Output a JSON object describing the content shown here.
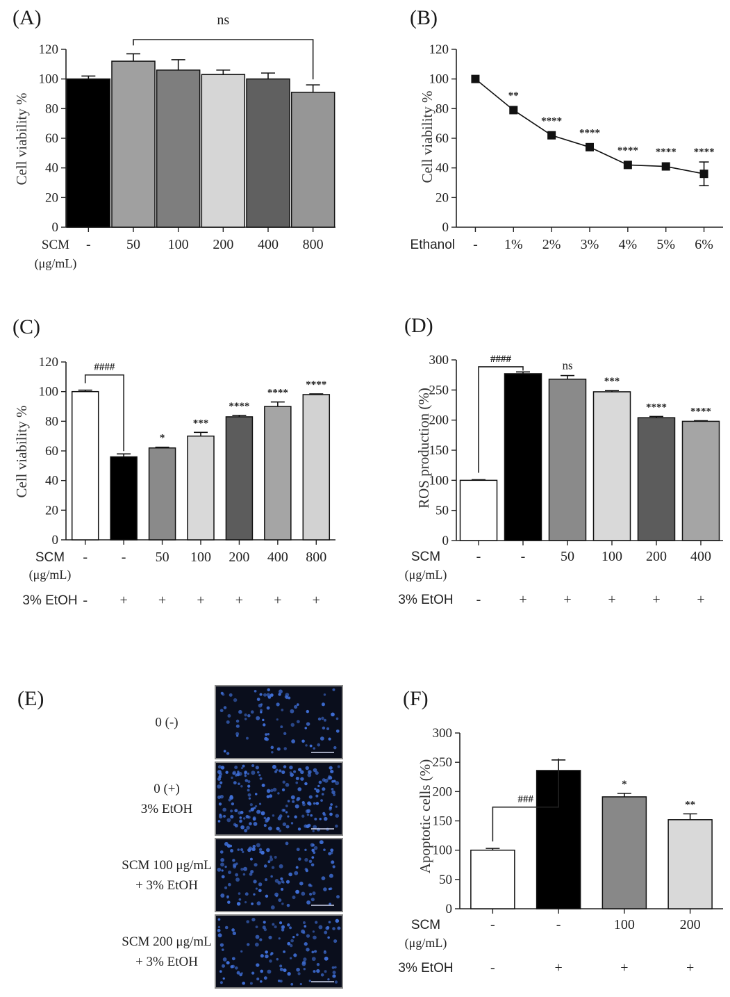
{
  "chart_data": [
    {
      "panel": "(A)",
      "type": "bar",
      "ylabel": "Cell viability %",
      "ylim": [
        0,
        120
      ],
      "yticks": [
        0,
        20,
        40,
        60,
        80,
        100,
        120
      ],
      "rows": [
        {
          "label": "SCM",
          "sublabel": "(μg/mL)",
          "values": [
            "-",
            "50",
            "100",
            "200",
            "400",
            "800"
          ]
        }
      ],
      "values": [
        100,
        112,
        106,
        103,
        100,
        91
      ],
      "errors": [
        2,
        5,
        7,
        3,
        4,
        5
      ],
      "colors": [
        "#000000",
        "#a0a0a0",
        "#7e7e7e",
        "#d6d6d6",
        "#606060",
        "#969696"
      ],
      "annotations": [
        {
          "text": "ns",
          "type": "bracket",
          "from": 1,
          "to": 5
        }
      ]
    },
    {
      "panel": "(B)",
      "type": "line",
      "ylabel": "Cell viability %",
      "ylim": [
        0,
        120
      ],
      "yticks": [
        0,
        20,
        40,
        60,
        80,
        100,
        120
      ],
      "rows": [
        {
          "label": "Ethanol",
          "values": [
            "-",
            "1%",
            "2%",
            "3%",
            "4%",
            "5%",
            "6%"
          ]
        }
      ],
      "values": [
        100,
        79,
        62,
        54,
        42,
        41,
        36
      ],
      "errors": [
        0,
        1,
        1,
        1,
        1,
        1,
        8
      ],
      "stars": [
        "",
        "**",
        "****",
        "****",
        "****",
        "****",
        "****"
      ]
    },
    {
      "panel": "(C)",
      "type": "bar",
      "ylabel": "Cell viability %",
      "ylim": [
        0,
        120
      ],
      "yticks": [
        0,
        20,
        40,
        60,
        80,
        100,
        120
      ],
      "rows": [
        {
          "label": "SCM",
          "sublabel": "(μg/mL)",
          "values": [
            "-",
            "-",
            "50",
            "100",
            "200",
            "400",
            "800"
          ]
        },
        {
          "label": "3% EtOH",
          "values": [
            "-",
            "+",
            "+",
            "+",
            "+",
            "+",
            "+"
          ]
        }
      ],
      "values": [
        100,
        56,
        62,
        70,
        83,
        90,
        98
      ],
      "errors": [
        1,
        2,
        0.5,
        2.5,
        1,
        3,
        0.5
      ],
      "colors": [
        "#ffffff",
        "#000000",
        "#8a8a8a",
        "#d9d9d9",
        "#5c5c5c",
        "#a5a5a5",
        "#d2d2d2"
      ],
      "stars": [
        "",
        "",
        "*",
        "***",
        "****",
        "****",
        "****"
      ],
      "annotations": [
        {
          "text": "####",
          "type": "bracket",
          "from": 0,
          "to": 1
        }
      ]
    },
    {
      "panel": "(D)",
      "type": "bar",
      "ylabel": "ROS production (%)",
      "ylim": [
        0,
        300
      ],
      "yticks": [
        0,
        50,
        100,
        150,
        200,
        250,
        300
      ],
      "rows": [
        {
          "label": "SCM",
          "sublabel": "(μg/mL)",
          "values": [
            "-",
            "-",
            "50",
            "100",
            "200",
            "400"
          ]
        },
        {
          "label": "3% EtOH",
          "values": [
            "-",
            "+",
            "+",
            "+",
            "+",
            "+"
          ]
        }
      ],
      "values": [
        100,
        277,
        268,
        247,
        204,
        198
      ],
      "errors": [
        1,
        3,
        6,
        2,
        2,
        1
      ],
      "colors": [
        "#ffffff",
        "#000000",
        "#8a8a8a",
        "#d9d9d9",
        "#5c5c5c",
        "#a5a5a5"
      ],
      "stars": [
        "",
        "",
        "ns",
        "***",
        "****",
        "****"
      ],
      "annotations": [
        {
          "text": "####",
          "type": "bracket",
          "from": 0,
          "to": 1
        }
      ]
    },
    {
      "panel": "(F)",
      "type": "bar",
      "ylabel": "Apoptotic cells (%)",
      "ylim": [
        0,
        300
      ],
      "yticks": [
        0,
        50,
        100,
        150,
        200,
        250,
        300
      ],
      "rows": [
        {
          "label": "SCM",
          "sublabel": "(μg/mL)",
          "values": [
            "-",
            "-",
            "100",
            "200"
          ]
        },
        {
          "label": "3% EtOH",
          "values": [
            "-",
            "+",
            "+",
            "+"
          ]
        }
      ],
      "values": [
        100,
        236,
        191,
        152
      ],
      "errors": [
        3,
        18,
        6,
        10
      ],
      "colors": [
        "#ffffff",
        "#000000",
        "#888888",
        "#d9d9d9"
      ],
      "stars": [
        "",
        "",
        "*",
        "**"
      ],
      "annotations": [
        {
          "text": "###",
          "type": "bracket",
          "from": 0,
          "to": 1
        }
      ]
    }
  ],
  "panel_e": {
    "label": "(E)",
    "images": [
      {
        "label_lines": [
          "0 (-)"
        ],
        "density": "sparse"
      },
      {
        "label_lines": [
          "0 (+)",
          "3% EtOH"
        ],
        "density": "dense"
      },
      {
        "label_lines": [
          "SCM 100 μg/mL",
          "+ 3% EtOH"
        ],
        "density": "medium"
      },
      {
        "label_lines": [
          "SCM 200 μg/mL",
          "+ 3% EtOH"
        ],
        "density": "medium"
      }
    ],
    "nuclei_color": "#3f6fd8",
    "background_color": "#0a0e1c"
  }
}
